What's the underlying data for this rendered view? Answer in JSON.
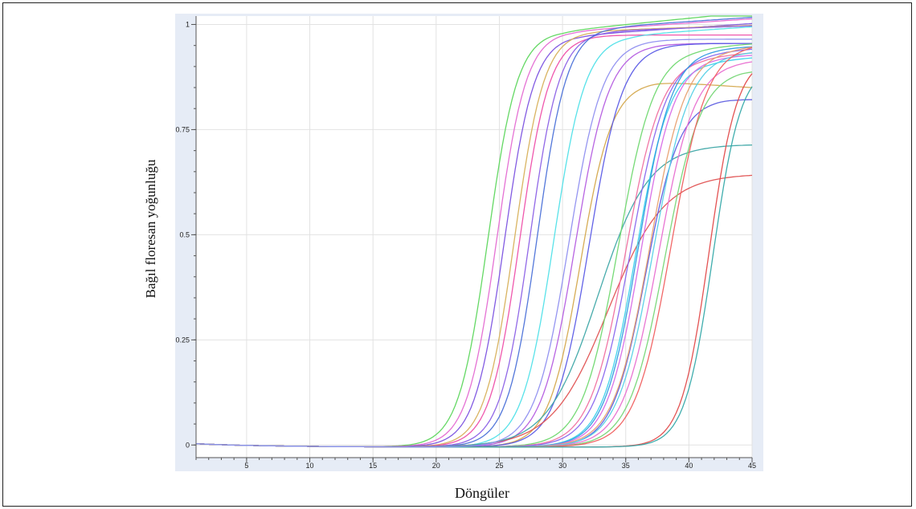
{
  "chart_data": {
    "type": "line",
    "title": "",
    "xlabel": "Döngüler",
    "ylabel": "Bağıl floresan yoğunluğu",
    "xlim": [
      1,
      45
    ],
    "ylim": [
      -0.03,
      1.02
    ],
    "xticks": [
      5,
      10,
      15,
      20,
      25,
      30,
      35,
      40,
      45
    ],
    "yticks": [
      0,
      0.25,
      0.5,
      0.75,
      1
    ],
    "ytick_labels": [
      "0",
      "0.25",
      "0.5",
      "0.75",
      "1"
    ],
    "grid": true,
    "legend": "none",
    "series": [
      {
        "color": "#5cd65c",
        "midpoint": 24.1,
        "slope": 0.85,
        "plateau": 0.99,
        "late_drift": 0.03
      },
      {
        "color": "#e46ad2",
        "midpoint": 24.8,
        "slope": 0.85,
        "plateau": 0.99,
        "late_drift": 0.02
      },
      {
        "color": "#7b52e0",
        "midpoint": 25.4,
        "slope": 0.85,
        "plateau": 0.98,
        "late_drift": 0.02
      },
      {
        "color": "#d7b05a",
        "midpoint": 26.2,
        "slope": 0.85,
        "plateau": 0.99,
        "late_drift": 0.01
      },
      {
        "color": "#ee4fa9",
        "midpoint": 26.6,
        "slope": 0.85,
        "plateau": 0.98,
        "late_drift": 0.0
      },
      {
        "color": "#8b60e6",
        "midpoint": 27.4,
        "slope": 0.85,
        "plateau": 0.99,
        "late_drift": 0.01
      },
      {
        "color": "#4a70d8",
        "midpoint": 28.0,
        "slope": 0.85,
        "plateau": 1.0,
        "late_drift": 0.02
      },
      {
        "color": "#4fe0e8",
        "midpoint": 29.3,
        "slope": 0.8,
        "plateau": 0.98,
        "late_drift": 0.02
      },
      {
        "color": "#b45ce0",
        "midpoint": 31.0,
        "slope": 0.75,
        "plateau": 0.96,
        "late_drift": 0.0
      },
      {
        "color": "#d4a84c",
        "midpoint": 31.4,
        "slope": 0.8,
        "plateau": 0.87,
        "late_drift": -0.02
      },
      {
        "color": "#5a5ae6",
        "midpoint": 32.1,
        "slope": 0.75,
        "plateau": 0.96,
        "late_drift": 0.0
      },
      {
        "color": "#e05252",
        "midpoint": 33.6,
        "slope": 0.45,
        "plateau": 0.65,
        "late_drift": 0.0
      },
      {
        "color": "#3da7a7",
        "midpoint": 32.8,
        "slope": 0.5,
        "plateau": 0.72,
        "late_drift": 0.0
      },
      {
        "color": "#6fd86f",
        "midpoint": 34.4,
        "slope": 0.7,
        "plateau": 0.95,
        "late_drift": 0.02
      },
      {
        "color": "#f06fa0",
        "midpoint": 35.0,
        "slope": 0.7,
        "plateau": 0.93,
        "late_drift": 0.02
      },
      {
        "color": "#8866ee",
        "midpoint": 35.4,
        "slope": 0.7,
        "plateau": 0.94,
        "late_drift": 0.02
      },
      {
        "color": "#3ad1ea",
        "midpoint": 35.8,
        "slope": 0.75,
        "plateau": 0.92,
        "late_drift": 0.02
      },
      {
        "color": "#2f9be0",
        "midpoint": 36.0,
        "slope": 0.75,
        "plateau": 0.95,
        "late_drift": 0.01
      },
      {
        "color": "#d86ae6",
        "midpoint": 36.2,
        "slope": 0.75,
        "plateau": 0.93,
        "late_drift": 0.01
      },
      {
        "color": "#5d5de0",
        "midpoint": 36.6,
        "slope": 0.75,
        "plateau": 0.83,
        "late_drift": -0.01
      },
      {
        "color": "#e8a070",
        "midpoint": 36.9,
        "slope": 0.7,
        "plateau": 0.95,
        "late_drift": 0.02
      },
      {
        "color": "#55d0e6",
        "midpoint": 37.2,
        "slope": 0.7,
        "plateau": 0.94,
        "late_drift": 0.01
      },
      {
        "color": "#e86ed0",
        "midpoint": 37.6,
        "slope": 0.7,
        "plateau": 0.92,
        "late_drift": 0.01
      },
      {
        "color": "#76d676",
        "midpoint": 38.1,
        "slope": 0.7,
        "plateau": 0.9,
        "late_drift": -0.01
      },
      {
        "color": "#f06060",
        "midpoint": 38.6,
        "slope": 0.7,
        "plateau": 0.96,
        "late_drift": 0.02
      },
      {
        "color": "#e24a4a",
        "midpoint": 41.6,
        "slope": 0.9,
        "plateau": 0.93,
        "late_drift": 0.0
      },
      {
        "color": "#35a9a9",
        "midpoint": 41.9,
        "slope": 0.9,
        "plateau": 0.91,
        "late_drift": 0.0
      },
      {
        "color": "#8f8ff0",
        "midpoint": 30.5,
        "slope": 0.75,
        "plateau": 0.97,
        "late_drift": 0.0
      }
    ]
  }
}
